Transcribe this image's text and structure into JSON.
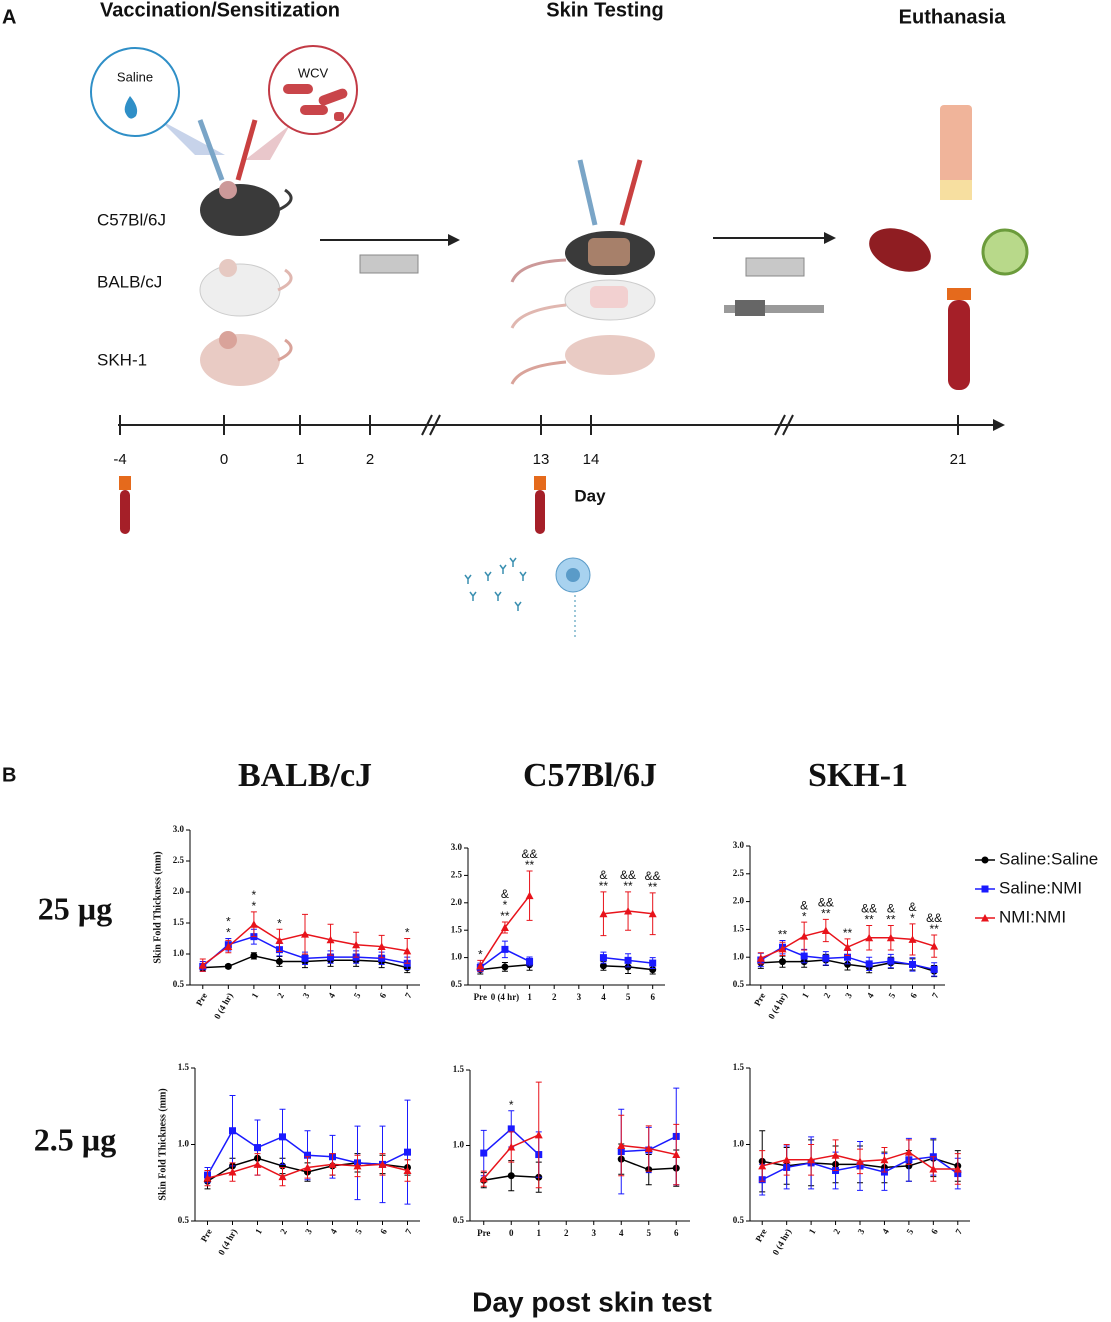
{
  "panel_a": {
    "label": "A",
    "stages": [
      "Vaccination/Sensitization",
      "Skin Testing",
      "Euthanasia"
    ],
    "bubbles": [
      "Saline",
      "WCV"
    ],
    "strains": [
      "C57Bl/6J",
      "BALB/cJ",
      "SKH-1"
    ],
    "timeline": [
      "-4",
      "0",
      "1",
      "2",
      "13",
      "14",
      "21"
    ],
    "axis_label": "Day"
  },
  "panel_b": {
    "label": "B",
    "row_labels": [
      "25 µg",
      "2.5 µg"
    ],
    "legend": [
      "Saline:Saline",
      "Saline:NMI",
      "NMI:NMI"
    ],
    "x_label": "Day post skin test"
  },
  "chart_data": [
    {
      "type": "line",
      "title": "BALB/cJ",
      "y_label": "Skin Fold Thickness (mm)",
      "categories": [
        "Pre",
        "0 (4 hr)",
        "1",
        "2",
        "3",
        "4",
        "5",
        "6",
        "7"
      ],
      "ylim": [
        0.5,
        3.0
      ],
      "yticks": [
        0.5,
        {
          "value": 1,
          "label": "1.0"
        },
        1.5,
        {
          "value": 2,
          "label": "2.0"
        },
        2.5,
        {
          "value": 3,
          "label": "3.0"
        }
      ],
      "series": [
        {
          "color": "#000000",
          "marker": "circle",
          "values": [
            0.78,
            0.8,
            0.97,
            0.88,
            0.88,
            0.9,
            0.9,
            0.88,
            0.78
          ],
          "errors": [
            0.05,
            0.03,
            0.05,
            0.08,
            0.1,
            0.1,
            0.1,
            0.1,
            0.08
          ]
        },
        {
          "color": "#1a1aff",
          "marker": "square",
          "values": [
            0.8,
            1.15,
            1.28,
            1.07,
            0.93,
            0.95,
            0.95,
            0.93,
            0.85
          ],
          "errors": [
            0.08,
            0.1,
            0.12,
            0.1,
            0.1,
            0.1,
            0.1,
            0.1,
            0.1
          ]
        },
        {
          "color": "#e8131b",
          "marker": "triangle",
          "values": [
            0.82,
            1.12,
            1.48,
            1.22,
            1.32,
            1.23,
            1.15,
            1.12,
            1.05
          ],
          "errors": [
            0.1,
            0.1,
            0.2,
            0.18,
            0.32,
            0.25,
            0.2,
            0.18,
            0.2
          ]
        }
      ],
      "annotations": [
        {
          "category": "0 (4 hr)",
          "text": "*",
          "color": "#1a1aff"
        },
        {
          "category": "0 (4 hr)",
          "text": "*",
          "color": "#e8131b"
        },
        {
          "category": "1",
          "text": "*",
          "color": "#1a1aff"
        },
        {
          "category": "1",
          "text": "*",
          "color": "#e8131b"
        },
        {
          "category": "2",
          "text": "*",
          "color": "#e8131b"
        },
        {
          "category": "7",
          "text": "*",
          "color": "#e8131b"
        }
      ]
    },
    {
      "type": "line",
      "title": "C57Bl/6J",
      "categories": [
        "Pre",
        "0 (4 hr)",
        "1",
        "2",
        "3",
        "4",
        "5",
        "6"
      ],
      "ylim": [
        0.5,
        3.0
      ],
      "yticks": [
        0.5,
        {
          "value": 1,
          "label": "1.0"
        },
        1.5,
        {
          "value": 2,
          "label": "2.0"
        },
        2.5,
        {
          "value": 3,
          "label": "3.0"
        }
      ],
      "series": [
        {
          "color": "#000000",
          "marker": "circle",
          "values": [
            0.78,
            0.83,
            0.87,
            null,
            null,
            0.85,
            0.83,
            0.78
          ],
          "errors": [
            0.08,
            0.08,
            0.1,
            null,
            null,
            0.08,
            0.12,
            0.08
          ]
        },
        {
          "color": "#1a1aff",
          "marker": "square",
          "values": [
            0.82,
            1.15,
            0.93,
            null,
            null,
            1.0,
            0.95,
            0.9
          ],
          "errors": [
            0.08,
            0.15,
            0.08,
            null,
            null,
            0.1,
            0.12,
            0.1
          ]
        },
        {
          "color": "#e8131b",
          "marker": "triangle",
          "values": [
            0.85,
            1.55,
            2.13,
            null,
            null,
            1.8,
            1.85,
            1.8
          ],
          "errors": [
            0.1,
            0.1,
            0.45,
            null,
            null,
            0.4,
            0.35,
            0.38
          ]
        }
      ],
      "annotations": [
        {
          "category": "Pre",
          "text": "*",
          "color": "#e8131b"
        },
        {
          "category": "0 (4 hr)",
          "text": "**",
          "color": "#e8131b"
        },
        {
          "category": "0 (4 hr)",
          "text": "*",
          "color": "#1a1aff"
        },
        {
          "category": "0 (4 hr)",
          "text": "&",
          "color": "#000000"
        },
        {
          "category": "1",
          "text": "**",
          "color": "#e8131b"
        },
        {
          "category": "1",
          "text": "&&",
          "color": "#000000"
        },
        {
          "category": "4",
          "text": "**",
          "color": "#e8131b"
        },
        {
          "category": "4",
          "text": "&",
          "color": "#000000"
        },
        {
          "category": "5",
          "text": "**",
          "color": "#e8131b"
        },
        {
          "category": "5",
          "text": "&&",
          "color": "#000000"
        },
        {
          "category": "6",
          "text": "**",
          "color": "#e8131b"
        },
        {
          "category": "6",
          "text": "&&",
          "color": "#000000"
        }
      ]
    },
    {
      "type": "line",
      "title": "SKH-1",
      "categories": [
        "Pre",
        "0 (4 hr)",
        "1",
        "2",
        "3",
        "4",
        "5",
        "6",
        "7"
      ],
      "ylim": [
        0.5,
        3.0
      ],
      "yticks": [
        0.5,
        {
          "value": 1,
          "label": "1.0"
        },
        1.5,
        {
          "value": 2,
          "label": "2.0"
        },
        2.5,
        {
          "value": 3,
          "label": "3.0"
        }
      ],
      "series": [
        {
          "color": "#000000",
          "marker": "circle",
          "values": [
            0.9,
            0.92,
            0.92,
            0.95,
            0.87,
            0.82,
            0.9,
            0.87,
            0.75
          ],
          "errors": [
            0.1,
            0.1,
            0.1,
            0.1,
            0.1,
            0.1,
            0.1,
            0.1,
            0.1
          ]
        },
        {
          "color": "#1a1aff",
          "marker": "square",
          "values": [
            0.95,
            1.18,
            1.02,
            0.98,
            1.0,
            0.88,
            0.93,
            0.87,
            0.78
          ],
          "errors": [
            0.12,
            0.12,
            0.12,
            0.12,
            0.12,
            0.12,
            0.12,
            0.12,
            0.12
          ]
        },
        {
          "color": "#e8131b",
          "marker": "triangle",
          "values": [
            0.98,
            1.15,
            1.38,
            1.48,
            1.18,
            1.35,
            1.35,
            1.32,
            1.2
          ],
          "errors": [
            0.1,
            0.12,
            0.25,
            0.2,
            0.15,
            0.22,
            0.22,
            0.28,
            0.2
          ]
        }
      ],
      "annotations": [
        {
          "category": "0 (4 hr)",
          "text": "**",
          "color": "#e8131b"
        },
        {
          "category": "1",
          "text": "*",
          "color": "#e8131b"
        },
        {
          "category": "1",
          "text": "&",
          "color": "#000000"
        },
        {
          "category": "2",
          "text": "**",
          "color": "#e8131b"
        },
        {
          "category": "2",
          "text": "&&",
          "color": "#000000"
        },
        {
          "category": "3",
          "text": "**",
          "color": "#e8131b"
        },
        {
          "category": "4",
          "text": "**",
          "color": "#e8131b"
        },
        {
          "category": "4",
          "text": "&&",
          "color": "#000000"
        },
        {
          "category": "5",
          "text": "**",
          "color": "#e8131b"
        },
        {
          "category": "5",
          "text": "&",
          "color": "#000000"
        },
        {
          "category": "6",
          "text": "*",
          "color": "#e8131b"
        },
        {
          "category": "6",
          "text": "&",
          "color": "#000000"
        },
        {
          "category": "7",
          "text": "**",
          "color": "#e8131b"
        },
        {
          "category": "7",
          "text": "&&",
          "color": "#000000"
        }
      ]
    },
    {
      "type": "line",
      "y_label": "Skin Fold Thickness (mm)",
      "categories": [
        "Pre",
        "0 (4 hr)",
        "1",
        "2",
        "3",
        "4",
        "5",
        "6",
        "7"
      ],
      "ylim": [
        0.5,
        1.5
      ],
      "yticks": [
        0.5,
        {
          "value": 1,
          "label": "1.0"
        },
        1.5
      ],
      "series": [
        {
          "color": "#000000",
          "marker": "circle",
          "values": [
            0.76,
            0.86,
            0.91,
            0.86,
            0.82,
            0.86,
            0.88,
            0.87,
            0.85
          ],
          "errors": [
            0.05,
            0.05,
            0.05,
            0.05,
            0.06,
            0.06,
            0.06,
            0.06,
            0.05
          ]
        },
        {
          "color": "#1a1aff",
          "marker": "square",
          "values": [
            0.8,
            1.09,
            0.98,
            1.05,
            0.93,
            0.92,
            0.88,
            0.87,
            0.95
          ],
          "errors": [
            0.05,
            0.23,
            0.18,
            0.18,
            0.16,
            0.14,
            0.24,
            0.25,
            0.34
          ]
        },
        {
          "color": "#e8131b",
          "marker": "triangle",
          "values": [
            0.78,
            0.82,
            0.87,
            0.79,
            0.85,
            0.87,
            0.86,
            0.87,
            0.83
          ],
          "errors": [
            0.05,
            0.06,
            0.07,
            0.06,
            0.07,
            0.07,
            0.07,
            0.07,
            0.07
          ]
        }
      ]
    },
    {
      "type": "line",
      "categories": [
        "Pre",
        "0",
        "1",
        "2",
        "3",
        "4",
        "5",
        "6"
      ],
      "ylim": [
        0.5,
        1.5
      ],
      "yticks": [
        0.5,
        {
          "value": 1,
          "label": "1.0"
        },
        1.5
      ],
      "series": [
        {
          "color": "#000000",
          "marker": "circle",
          "values": [
            0.77,
            0.8,
            0.79,
            null,
            null,
            0.91,
            0.84,
            0.85
          ],
          "errors": [
            0.05,
            0.1,
            0.1,
            null,
            null,
            0.1,
            0.1,
            0.12
          ]
        },
        {
          "color": "#1a1aff",
          "marker": "square",
          "values": [
            0.95,
            1.11,
            0.94,
            null,
            null,
            0.96,
            0.97,
            1.06
          ],
          "errors": [
            0.15,
            0.12,
            0.15,
            null,
            null,
            0.28,
            0.15,
            0.32
          ]
        },
        {
          "color": "#e8131b",
          "marker": "triangle",
          "values": [
            0.78,
            0.99,
            1.07,
            null,
            null,
            1.0,
            0.98,
            0.94
          ],
          "errors": [
            0.05,
            0.1,
            0.35,
            null,
            null,
            0.2,
            0.15,
            0.2
          ]
        }
      ],
      "annotations": [
        {
          "category": "0",
          "text": "*",
          "color": "#1a1aff"
        }
      ]
    },
    {
      "type": "line",
      "categories": [
        "Pre",
        "0 (4 hr)",
        "1",
        "2",
        "3",
        "4",
        "5",
        "6",
        "7"
      ],
      "ylim": [
        0.5,
        1.5
      ],
      "yticks": [
        0.5,
        {
          "value": 1,
          "label": "1.0"
        },
        1.5
      ],
      "series": [
        {
          "color": "#000000",
          "marker": "circle",
          "values": [
            0.89,
            0.86,
            0.88,
            0.87,
            0.87,
            0.85,
            0.86,
            0.91,
            0.86
          ],
          "errors": [
            0.2,
            0.12,
            0.15,
            0.12,
            0.12,
            0.1,
            0.1,
            0.12,
            0.1
          ]
        },
        {
          "color": "#1a1aff",
          "marker": "square",
          "values": [
            0.77,
            0.85,
            0.88,
            0.83,
            0.86,
            0.82,
            0.9,
            0.92,
            0.81
          ],
          "errors": [
            0.1,
            0.14,
            0.17,
            0.12,
            0.16,
            0.12,
            0.14,
            0.12,
            0.1
          ]
        },
        {
          "color": "#e8131b",
          "marker": "triangle",
          "values": [
            0.86,
            0.9,
            0.9,
            0.93,
            0.89,
            0.9,
            0.95,
            0.84,
            0.84
          ],
          "errors": [
            0.1,
            0.1,
            0.1,
            0.1,
            0.08,
            0.08,
            0.08,
            0.08,
            0.1
          ]
        }
      ]
    }
  ]
}
